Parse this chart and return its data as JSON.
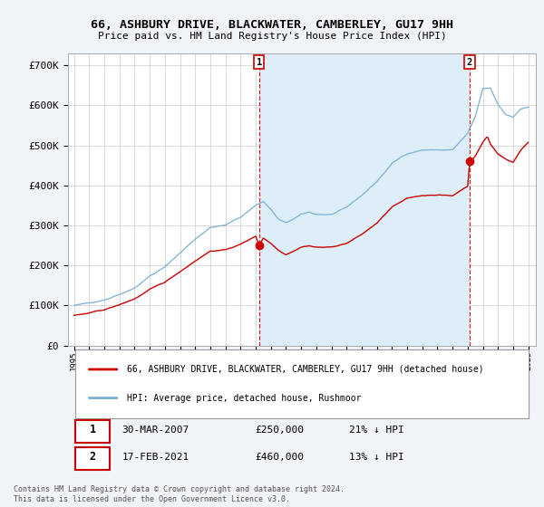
{
  "title": "66, ASHBURY DRIVE, BLACKWATER, CAMBERLEY, GU17 9HH",
  "subtitle": "Price paid vs. HM Land Registry's House Price Index (HPI)",
  "ylim": [
    0,
    730000
  ],
  "yticks": [
    0,
    100000,
    200000,
    300000,
    400000,
    500000,
    600000,
    700000
  ],
  "ytick_labels": [
    "£0",
    "£100K",
    "£200K",
    "£300K",
    "£400K",
    "£500K",
    "£600K",
    "£700K"
  ],
  "background_color": "#f0f4f8",
  "plot_background": "#ffffff",
  "red_color": "#cc0000",
  "blue_color": "#7ab0d4",
  "shade_color": "#ddeef8",
  "sale1_date": 2007.22,
  "sale1_price": 250000,
  "sale2_date": 2021.12,
  "sale2_price": 460000,
  "legend_label_red": "66, ASHBURY DRIVE, BLACKWATER, CAMBERLEY, GU17 9HH (detached house)",
  "legend_label_blue": "HPI: Average price, detached house, Rushmoor",
  "table_row1": [
    "1",
    "30-MAR-2007",
    "£250,000",
    "21% ↓ HPI"
  ],
  "table_row2": [
    "2",
    "17-FEB-2021",
    "£460,000",
    "13% ↓ HPI"
  ],
  "footer": "Contains HM Land Registry data © Crown copyright and database right 2024.\nThis data is licensed under the Open Government Licence v3.0."
}
